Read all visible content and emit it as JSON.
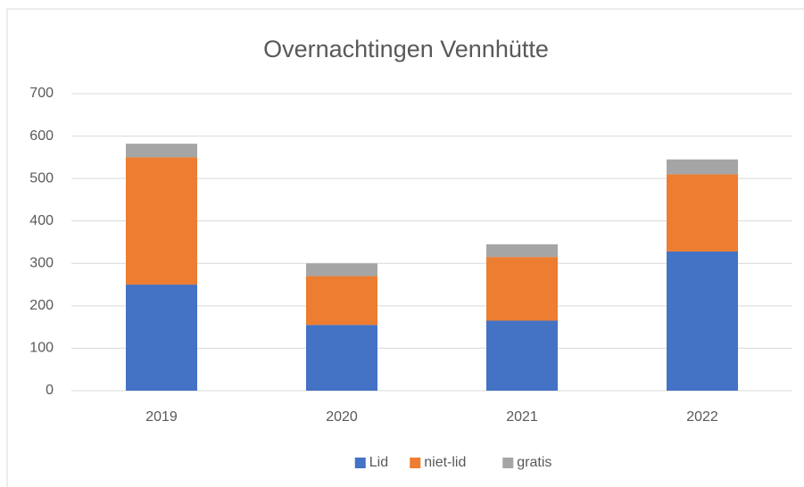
{
  "chart_data": {
    "type": "stacked_bar",
    "title": "Overnachtingen Vennhütte",
    "categories": [
      "2019",
      "2020",
      "2021",
      "2022"
    ],
    "series": [
      {
        "name": "Lid",
        "color": "#4472c4",
        "values": [
          250,
          155,
          165,
          328
        ]
      },
      {
        "name": "niet-lid",
        "color": "#ed7d31",
        "values": [
          300,
          115,
          150,
          182
        ]
      },
      {
        "name": "gratis",
        "color": "#a5a5a5",
        "values": [
          32,
          30,
          30,
          35
        ]
      }
    ],
    "ylim": [
      0,
      700
    ],
    "yticks": [
      0,
      100,
      200,
      300,
      400,
      500,
      600,
      700
    ],
    "grid": true,
    "legend": "bottom"
  }
}
